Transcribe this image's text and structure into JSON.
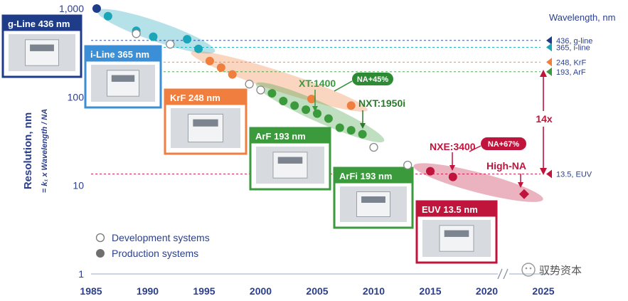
{
  "chart_data": {
    "type": "scatter",
    "y_axis": {
      "title": "Resolution, nm",
      "subtitle": "= k₁ x Wavelength / NA",
      "scale": "log",
      "ylim": [
        1,
        1000
      ],
      "ticks": [
        {
          "value": 1,
          "label": "1"
        },
        {
          "value": 10,
          "label": "10"
        },
        {
          "value": 100,
          "label": "100"
        },
        {
          "value": 1000,
          "label": "1,000"
        }
      ]
    },
    "x_axis": {
      "xlim": [
        1985,
        2025
      ],
      "ticks": [
        {
          "value": 1985,
          "label": "1985"
        },
        {
          "value": 1990,
          "label": "1990"
        },
        {
          "value": 1995,
          "label": "1995"
        },
        {
          "value": 2000,
          "label": "2000"
        },
        {
          "value": 2005,
          "label": "2005"
        },
        {
          "value": 2010,
          "label": "2010"
        },
        {
          "value": 2015,
          "label": "2015"
        },
        {
          "value": 2020,
          "label": "2020"
        },
        {
          "value": 2025,
          "label": "2025"
        }
      ]
    },
    "wavelength_header": "Wavelength, nm",
    "wavelength_lines": [
      {
        "label": "436, g-line",
        "value": 436,
        "color": "#1f3c88"
      },
      {
        "label": "365, i-line",
        "value": 365,
        "color": "#1aa5b8"
      },
      {
        "label": "248, KrF",
        "value": 248,
        "color": "#f07e3f"
      },
      {
        "label": "193, ArF",
        "value": 193,
        "color": "#3a9a3c"
      },
      {
        "label": "13.5, EUV",
        "value": 13.5,
        "color": "#c0143c"
      }
    ],
    "factor_label": "14x",
    "legend": [
      {
        "label": "Development systems",
        "style": "open"
      },
      {
        "label": "Production systems",
        "style": "filled"
      }
    ],
    "series": [
      {
        "name": "g-Line 436 nm",
        "color": "#1f3c88",
        "points": [
          {
            "x": 1985.5,
            "y": 1000,
            "dev": false
          }
        ]
      },
      {
        "name": "i-Line 365 nm",
        "color": "#1aa5b8",
        "points": [
          {
            "x": 1986.5,
            "y": 820,
            "dev": false
          },
          {
            "x": 1989,
            "y": 560,
            "dev": false
          },
          {
            "x": 1990.5,
            "y": 480,
            "dev": false
          },
          {
            "x": 1993.5,
            "y": 450,
            "dev": false
          },
          {
            "x": 1994.5,
            "y": 350,
            "dev": false
          }
        ]
      },
      {
        "name": "KrF 248 nm",
        "color": "#f07e3f",
        "points": [
          {
            "x": 1995.5,
            "y": 255,
            "dev": false
          },
          {
            "x": 1996.5,
            "y": 215,
            "dev": false
          },
          {
            "x": 1997.5,
            "y": 180,
            "dev": false
          },
          {
            "x": 2004.5,
            "y": 95,
            "dev": false
          },
          {
            "x": 2008,
            "y": 80,
            "dev": false
          }
        ]
      },
      {
        "name": "ArF 193 nm",
        "color": "#3a9a3c",
        "points": [
          {
            "x": 2001,
            "y": 110,
            "dev": false
          },
          {
            "x": 2002,
            "y": 90,
            "dev": false
          },
          {
            "x": 2003,
            "y": 80,
            "dev": false
          },
          {
            "x": 2004,
            "y": 72,
            "dev": false
          },
          {
            "x": 2005,
            "y": 65,
            "dev": false
          },
          {
            "x": 2006,
            "y": 57,
            "dev": false
          },
          {
            "x": 2007,
            "y": 45,
            "dev": false
          },
          {
            "x": 2008,
            "y": 42,
            "dev": false
          },
          {
            "x": 2009,
            "y": 38,
            "dev": false
          }
        ]
      },
      {
        "name": "Development",
        "color": "#888888",
        "points": [
          {
            "x": 1989,
            "y": 520,
            "dev": true
          },
          {
            "x": 1992,
            "y": 395,
            "dev": true
          },
          {
            "x": 1999,
            "y": 140,
            "dev": true
          },
          {
            "x": 2000,
            "y": 120,
            "dev": true
          },
          {
            "x": 2010,
            "y": 27,
            "dev": true
          },
          {
            "x": 2013,
            "y": 17,
            "dev": true
          }
        ]
      },
      {
        "name": "EUV 13.5 nm",
        "color": "#c0143c",
        "points": [
          {
            "x": 2015,
            "y": 14.5,
            "dev": false
          },
          {
            "x": 2017,
            "y": 12.5,
            "dev": false
          },
          {
            "x": 2023.3,
            "y": 8,
            "dev": false,
            "shape": "diamond"
          }
        ]
      }
    ],
    "bands": [
      {
        "color": "#1aa5b8",
        "from": {
          "x": 1986.5,
          "y": 850
        },
        "to": {
          "x": 1995,
          "y": 360
        },
        "half_width": 14
      },
      {
        "color": "#f07e3f",
        "from": {
          "x": 1994.8,
          "y": 290
        },
        "to": {
          "x": 2008.5,
          "y": 78
        },
        "half_width": 14
      },
      {
        "color": "#3a9a3c",
        "from": {
          "x": 2000.5,
          "y": 125
        },
        "to": {
          "x": 2010,
          "y": 36
        },
        "half_width": 14
      },
      {
        "color": "#c0143c",
        "from": {
          "x": 2014.5,
          "y": 15.5
        },
        "to": {
          "x": 2024,
          "y": 7.5
        },
        "half_width": 14
      }
    ],
    "boxes": [
      {
        "label": "g-Line 436 nm",
        "color": "#1f3c88"
      },
      {
        "label": "i-Line 365 nm",
        "color": "#3b8fd6"
      },
      {
        "label": "KrF 248 nm",
        "color": "#f07e3f"
      },
      {
        "label": "ArF 193 nm",
        "color": "#3a9a3c"
      },
      {
        "label": "ArFi 193 nm",
        "color": "#3a9a3c"
      },
      {
        "label": "EUV 13.5 nm",
        "color": "#c0143c"
      }
    ],
    "annotations": [
      {
        "text": "XT:1400",
        "color": "#3a9a3c"
      },
      {
        "text": "NA+45%",
        "color": "#3a9a3c"
      },
      {
        "text": "NXT:1950i",
        "color": "#2a7a2c"
      },
      {
        "text": "NXE:3400",
        "color": "#c0143c"
      },
      {
        "text": "NA+67%",
        "color": "#c0143c"
      },
      {
        "text": "High-NA",
        "color": "#c0143c"
      }
    ],
    "watermark": "驭势资本"
  }
}
